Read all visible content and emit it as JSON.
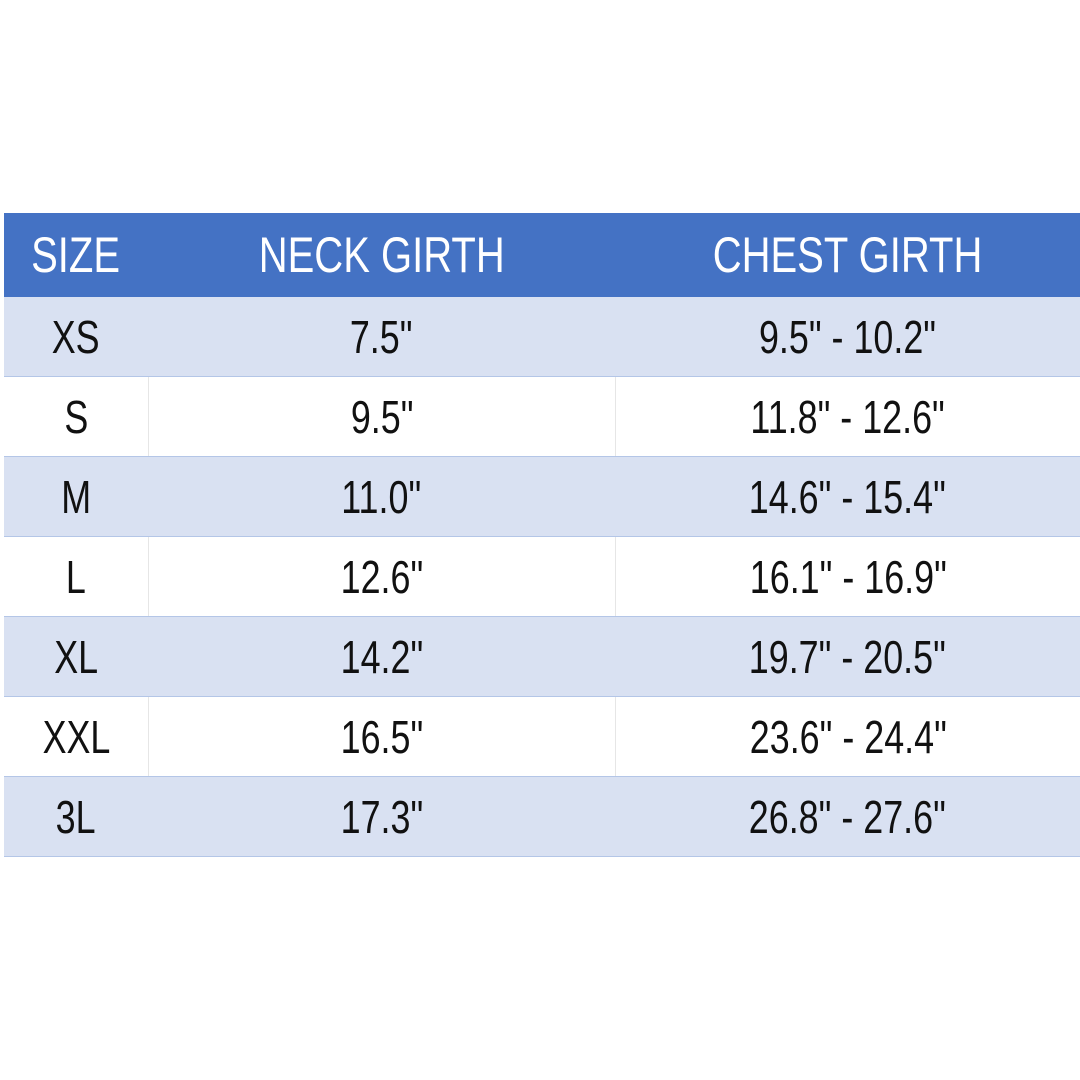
{
  "table": {
    "header": [
      "SIZE",
      "NECK GIRTH",
      "CHEST GIRTH"
    ],
    "rows": [
      [
        "XS",
        "7.5\"",
        "9.5\" - 10.2\""
      ],
      [
        "S",
        "9.5\"",
        "11.8\" - 12.6\""
      ],
      [
        "M",
        "11.0\"",
        "14.6\" - 15.4\""
      ],
      [
        "L",
        "12.6\"",
        "16.1\" - 16.9\""
      ],
      [
        "XL",
        "14.2\"",
        "19.7\" - 20.5\""
      ],
      [
        "XXL",
        "16.5\"",
        "23.6\" - 24.4\""
      ],
      [
        "3L",
        "17.3\"",
        "26.8\" - 27.6\""
      ]
    ]
  }
}
